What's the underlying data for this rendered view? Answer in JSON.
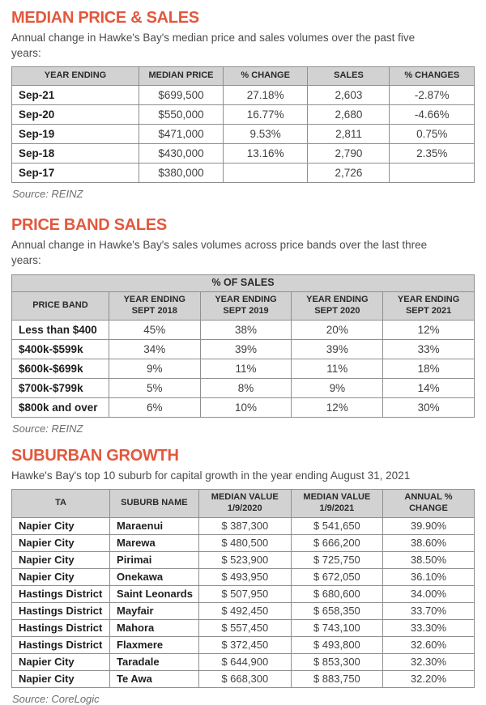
{
  "colors": {
    "accent": "#E2583C",
    "header_bg": "#D2D2D3",
    "table_border": "#8F8F92",
    "body_text": "#4B4B4D",
    "source_text": "#6D6E71"
  },
  "sections": [
    {
      "title": "MEDIAN PRICE & SALES",
      "subtitle": "Annual change in Hawke's Bay's median price and sales volumes over the past five\nyears:",
      "source": "Source: REINZ",
      "table": {
        "headers": [
          "YEAR ENDING",
          "MEDIAN PRICE",
          "% CHANGE",
          "SALES",
          "% CHANGES"
        ],
        "rows": [
          [
            "Sep-21",
            "$699,500",
            "27.18%",
            "2,603",
            "-2.87%"
          ],
          [
            "Sep-20",
            "$550,000",
            "16.77%",
            "2,680",
            "-4.66%"
          ],
          [
            "Sep-19",
            "$471,000",
            "9.53%",
            "2,811",
            "0.75%"
          ],
          [
            "Sep-18",
            "$430,000",
            "13.16%",
            "2,790",
            "2.35%"
          ],
          [
            "Sep-17",
            "$380,000",
            "",
            "2,726",
            ""
          ]
        ]
      }
    },
    {
      "title": "PRICE BAND SALES",
      "subtitle": "Annual change in Hawke's Bay's sales volumes across price bands over the last three\nyears:",
      "source": "Source: REINZ",
      "table": {
        "span_header": "% OF SALES",
        "headers": [
          "PRICE BAND",
          "YEAR ENDING\nSEPT 2018",
          "YEAR ENDING\nSEPT 2019",
          "YEAR ENDING\nSEPT 2020",
          "YEAR ENDING\nSEPT 2021"
        ],
        "rows": [
          [
            "Less than $400",
            "45%",
            "38%",
            "20%",
            "12%"
          ],
          [
            "$400k-$599k",
            "34%",
            "39%",
            "39%",
            "33%"
          ],
          [
            "$600k-$699k",
            "9%",
            "11%",
            "11%",
            "18%"
          ],
          [
            "$700k-$799k",
            "5%",
            "8%",
            "9%",
            "14%"
          ],
          [
            "$800k and over",
            "6%",
            "10%",
            "12%",
            "30%"
          ]
        ]
      }
    },
    {
      "title": "SUBURBAN GROWTH",
      "subtitle": "Hawke's Bay's top 10 suburb for capital growth in the year ending August 31, 2021",
      "source": "Source: CoreLogic",
      "table": {
        "headers": [
          "TA",
          "SUBURB NAME",
          "MEDIAN VALUE\n1/9/2020",
          "MEDIAN VALUE\n1/9/2021",
          "ANNUAL %\nCHANGE"
        ],
        "rows": [
          [
            "Napier City",
            "Maraenui",
            "$ 387,300",
            "$ 541,650",
            "39.90%"
          ],
          [
            "Napier City",
            "Marewa",
            "$ 480,500",
            "$ 666,200",
            "38.60%"
          ],
          [
            "Napier City",
            "Pirimai",
            "$ 523,900",
            "$ 725,750",
            "38.50%"
          ],
          [
            "Napier City",
            "Onekawa",
            "$ 493,950",
            "$ 672,050",
            "36.10%"
          ],
          [
            "Hastings District",
            "Saint Leonards",
            "$ 507,950",
            "$ 680,600",
            "34.00%"
          ],
          [
            "Hastings District",
            "Mayfair",
            "$ 492,450",
            "$ 658,350",
            "33.70%"
          ],
          [
            "Hastings District",
            "Mahora",
            "$ 557,450",
            "$ 743,100",
            "33.30%"
          ],
          [
            "Hastings District",
            "Flaxmere",
            "$ 372,450",
            "$ 493,800",
            "32.60%"
          ],
          [
            "Napier City",
            "Taradale",
            "$ 644,900",
            "$ 853,300",
            "32.30%"
          ],
          [
            "Napier City",
            "Te Awa",
            "$ 668,300",
            "$ 883,750",
            "32.20%"
          ]
        ]
      }
    }
  ]
}
